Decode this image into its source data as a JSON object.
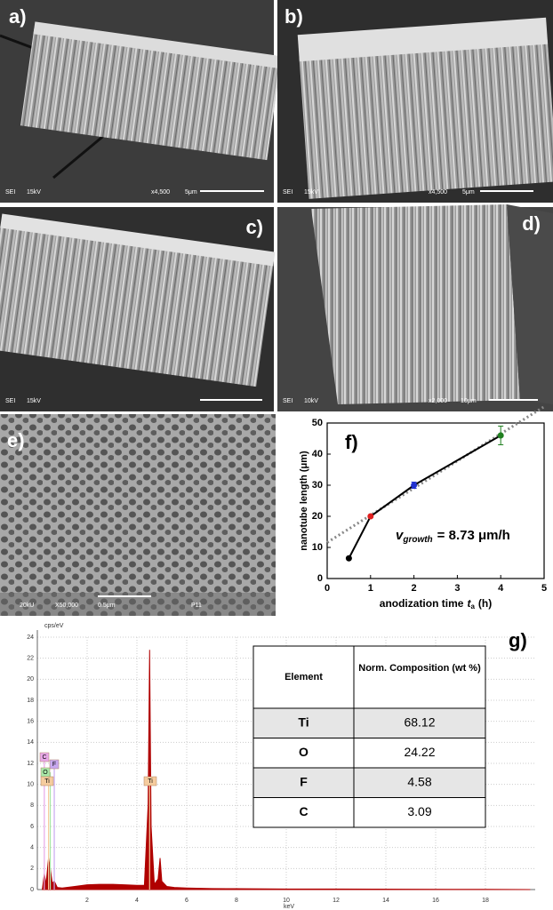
{
  "panels": [
    {
      "label": "a)",
      "info": [
        "SEI",
        "15kV",
        "x4,500",
        "5μm"
      ]
    },
    {
      "label": "b)",
      "info": [
        "SEI",
        "15kV",
        "x4,500",
        "5μm"
      ]
    },
    {
      "label": "c)",
      "info": [
        "SEI",
        "15kV"
      ]
    },
    {
      "label": "d)",
      "info": [
        "SEI",
        "10kV",
        "x2,000",
        "10μm"
      ]
    },
    {
      "label": "e)",
      "info": [
        "20kU",
        "X50,000",
        "0.5μm",
        "P11"
      ]
    }
  ],
  "chart_data": [
    {
      "type": "scatter",
      "label": "f)",
      "xlabel": {
        "text": "anodization time",
        "symbol": "t",
        "subscript": "a",
        "unit": "(h)"
      },
      "ylabel": "nanotube length (μm)",
      "x": [
        0.5,
        1,
        2,
        4
      ],
      "values": [
        6.5,
        20,
        30,
        46
      ],
      "errors": [
        null,
        null,
        1,
        3
      ],
      "colors": [
        "#000000",
        "#e02020",
        "#2030d0",
        "#208020"
      ],
      "xlim": [
        0,
        5
      ],
      "xticks": [
        0,
        1,
        2,
        3,
        4,
        5
      ],
      "ylim": [
        0,
        50
      ],
      "yticks": [
        0,
        10,
        20,
        30,
        40,
        50
      ],
      "fit": {
        "slope": 8.73,
        "intercept": 11.6,
        "color": "#888888"
      },
      "annotation": {
        "symbol": "v",
        "subscript": "growth",
        "text": "= 8.73 μm/h"
      }
    },
    {
      "type": "area",
      "label": "g)",
      "ylabel": "cps/eV",
      "xlabel": "keV",
      "color": "#b00000",
      "x": [
        0.2,
        0.28,
        0.35,
        0.45,
        0.52,
        0.6,
        0.68,
        0.8,
        1.0,
        1.5,
        2.0,
        2.5,
        3.0,
        3.5,
        4.0,
        4.3,
        4.45,
        4.51,
        4.57,
        4.7,
        4.85,
        4.93,
        5.0,
        5.2,
        5.5,
        6,
        7,
        8,
        10,
        12,
        15,
        18,
        19.8
      ],
      "values": [
        0,
        1.5,
        0.5,
        3,
        2,
        0.6,
        0.8,
        0.2,
        0.15,
        0.3,
        0.45,
        0.5,
        0.5,
        0.45,
        0.4,
        0.4,
        8,
        22.8,
        6,
        0.5,
        1,
        3,
        0.8,
        0.3,
        0.2,
        0.15,
        0.1,
        0.08,
        0.05,
        0.05,
        0.03,
        0.02,
        0
      ],
      "xlim": [
        0,
        20
      ],
      "xticks": [
        2,
        4,
        6,
        8,
        10,
        12,
        14,
        16,
        18
      ],
      "ylim": [
        0,
        24
      ],
      "yticks": [
        0,
        2,
        4,
        6,
        8,
        10,
        12,
        14,
        16,
        18,
        20,
        22,
        24
      ],
      "grid": true,
      "markers": [
        {
          "label": "C",
          "x": 0.28,
          "color": "#e8a8e8"
        },
        {
          "label": "F",
          "x": 0.68,
          "color": "#c8a8f0"
        },
        {
          "label": "O",
          "x": 0.52,
          "color": "#a8e8a8"
        },
        {
          "label": "Ti",
          "x": 0.45,
          "color": "#f5cc9e"
        },
        {
          "label": "Ti",
          "x": 4.51,
          "color": "#f5cc9e"
        }
      ]
    }
  ],
  "table": {
    "header": [
      "Element",
      "Norm. Composition (wt %)"
    ],
    "rows": [
      [
        "Ti",
        "68.12"
      ],
      [
        "O",
        "24.22"
      ],
      [
        "F",
        "4.58"
      ],
      [
        "C",
        "3.09"
      ]
    ]
  }
}
